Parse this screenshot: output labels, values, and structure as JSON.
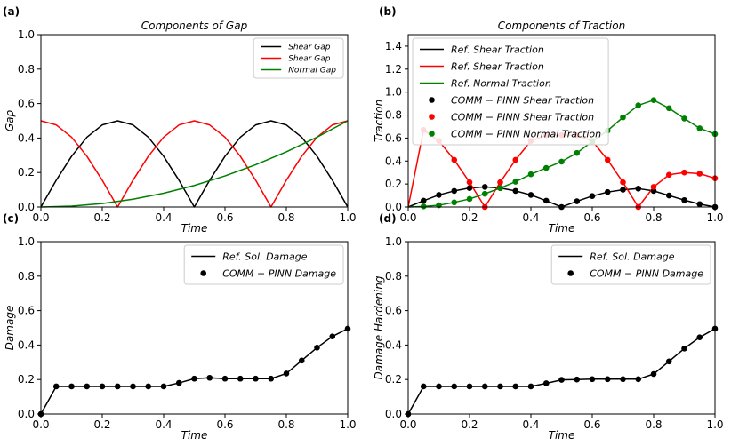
{
  "chart_data": [
    {
      "panel": "(a)",
      "type": "line",
      "title": "Components of Gap",
      "xlabel": "Time",
      "ylabel": "Gap",
      "xlim": [
        0,
        1
      ],
      "ylim": [
        0,
        1
      ],
      "xticks": [
        "0.0",
        "0.2",
        "0.4",
        "0.6",
        "0.8",
        "1.0"
      ],
      "yticks": [
        "0.0",
        "0.2",
        "0.4",
        "0.6",
        "0.8",
        "1.0"
      ],
      "legend_position": "top-right",
      "legend_font": 9,
      "series": [
        {
          "name": "Shear Gap",
          "color": "#000000",
          "style": "line",
          "x": [
            0,
            0.05,
            0.1,
            0.15,
            0.2,
            0.25,
            0.3,
            0.35,
            0.4,
            0.45,
            0.5,
            0.55,
            0.6,
            0.65,
            0.7,
            0.75,
            0.8,
            0.85,
            0.9,
            0.95,
            1.0
          ],
          "y": [
            0,
            0.155,
            0.294,
            0.405,
            0.476,
            0.5,
            0.476,
            0.405,
            0.294,
            0.155,
            0,
            0.155,
            0.294,
            0.405,
            0.476,
            0.5,
            0.476,
            0.405,
            0.294,
            0.155,
            0
          ]
        },
        {
          "name": "Shear Gap",
          "color": "#ff0000",
          "style": "line",
          "x": [
            0,
            0.05,
            0.1,
            0.15,
            0.2,
            0.25,
            0.3,
            0.35,
            0.4,
            0.45,
            0.5,
            0.55,
            0.6,
            0.65,
            0.7,
            0.75,
            0.8,
            0.85,
            0.9,
            0.95,
            1.0
          ],
          "y": [
            0.5,
            0.476,
            0.405,
            0.294,
            0.155,
            0,
            0.155,
            0.294,
            0.405,
            0.476,
            0.5,
            0.476,
            0.405,
            0.294,
            0.155,
            0,
            0.155,
            0.294,
            0.405,
            0.476,
            0.5
          ]
        },
        {
          "name": "Normal Gap",
          "color": "#008000",
          "style": "line",
          "x": [
            0,
            0.1,
            0.2,
            0.3,
            0.4,
            0.5,
            0.6,
            0.7,
            0.8,
            0.9,
            1.0
          ],
          "y": [
            0,
            0.005,
            0.02,
            0.045,
            0.08,
            0.125,
            0.18,
            0.245,
            0.32,
            0.405,
            0.5
          ]
        }
      ]
    },
    {
      "panel": "(b)",
      "type": "line",
      "title": "Components of Traction",
      "xlabel": "Time",
      "ylabel": "Traction",
      "xlim": [
        0,
        1
      ],
      "ylim": [
        0,
        1.5
      ],
      "xticks": [
        "0.0",
        "0.2",
        "0.4",
        "0.6",
        "0.8",
        "1.0"
      ],
      "yticks": [
        "0.0",
        "0.2",
        "0.4",
        "0.6",
        "0.8",
        "1.0",
        "1.2",
        "1.4"
      ],
      "legend_position": "top-left",
      "legend_font": 11,
      "series": [
        {
          "name": "Ref.  Shear Traction",
          "color": "#000000",
          "style": "line",
          "x": [
            0,
            0.05,
            0.1,
            0.15,
            0.2,
            0.25,
            0.3,
            0.35,
            0.4,
            0.45,
            0.5,
            0.55,
            0.6,
            0.65,
            0.7,
            0.75,
            0.8,
            0.85,
            0.9,
            0.95,
            1.0
          ],
          "y": [
            0,
            0.055,
            0.105,
            0.14,
            0.165,
            0.175,
            0.165,
            0.14,
            0.105,
            0.055,
            0,
            0.05,
            0.095,
            0.13,
            0.15,
            0.16,
            0.14,
            0.1,
            0.06,
            0.025,
            0
          ]
        },
        {
          "name": "Ref.  Shear Traction",
          "color": "#ff0000",
          "style": "line",
          "x": [
            0,
            0.05,
            0.1,
            0.15,
            0.2,
            0.25,
            0.3,
            0.35,
            0.4,
            0.45,
            0.5,
            0.55,
            0.6,
            0.65,
            0.7,
            0.75,
            0.8,
            0.85,
            0.9,
            0.95,
            1.0
          ],
          "y": [
            0,
            0.67,
            0.575,
            0.41,
            0.215,
            0,
            0.215,
            0.41,
            0.575,
            0.625,
            0.625,
            0.625,
            0.575,
            0.41,
            0.215,
            0,
            0.175,
            0.28,
            0.3,
            0.29,
            0.25
          ]
        },
        {
          "name": "Ref.  Normal Traction",
          "color": "#008000",
          "style": "line",
          "x": [
            0,
            0.05,
            0.1,
            0.15,
            0.2,
            0.25,
            0.3,
            0.35,
            0.4,
            0.45,
            0.5,
            0.55,
            0.6,
            0.65,
            0.7,
            0.75,
            0.8,
            0.85,
            0.9,
            0.95,
            1.0
          ],
          "y": [
            0,
            0.005,
            0.015,
            0.04,
            0.07,
            0.115,
            0.165,
            0.22,
            0.285,
            0.34,
            0.395,
            0.47,
            0.57,
            0.665,
            0.78,
            0.885,
            0.93,
            0.86,
            0.77,
            0.685,
            0.635
          ]
        },
        {
          "name": "COMM − PINN Shear Traction",
          "color": "#000000",
          "style": "marker",
          "x": [
            0.05,
            0.1,
            0.15,
            0.2,
            0.25,
            0.3,
            0.35,
            0.4,
            0.45,
            0.5,
            0.55,
            0.6,
            0.65,
            0.7,
            0.75,
            0.8,
            0.85,
            0.9,
            0.95,
            1.0
          ],
          "y": [
            0.055,
            0.105,
            0.14,
            0.165,
            0.175,
            0.165,
            0.14,
            0.105,
            0.055,
            0,
            0.05,
            0.095,
            0.13,
            0.15,
            0.16,
            0.14,
            0.1,
            0.06,
            0.025,
            0
          ]
        },
        {
          "name": "COMM − PINN Shear Traction",
          "color": "#ff0000",
          "style": "marker",
          "x": [
            0.05,
            0.1,
            0.15,
            0.2,
            0.25,
            0.3,
            0.35,
            0.4,
            0.45,
            0.5,
            0.55,
            0.6,
            0.65,
            0.7,
            0.75,
            0.8,
            0.85,
            0.9,
            0.95,
            1.0
          ],
          "y": [
            0.67,
            0.575,
            0.41,
            0.215,
            0,
            0.215,
            0.41,
            0.575,
            0.625,
            0.625,
            0.625,
            0.575,
            0.41,
            0.215,
            0,
            0.175,
            0.28,
            0.3,
            0.29,
            0.25
          ]
        },
        {
          "name": "COMM − PINN Normal Traction",
          "color": "#008000",
          "style": "marker",
          "x": [
            0.05,
            0.1,
            0.15,
            0.2,
            0.25,
            0.3,
            0.35,
            0.4,
            0.45,
            0.5,
            0.55,
            0.6,
            0.65,
            0.7,
            0.75,
            0.8,
            0.85,
            0.9,
            0.95,
            1.0
          ],
          "y": [
            0.005,
            0.015,
            0.04,
            0.07,
            0.115,
            0.165,
            0.22,
            0.285,
            0.34,
            0.395,
            0.47,
            0.57,
            0.665,
            0.78,
            0.885,
            0.93,
            0.86,
            0.77,
            0.685,
            0.635
          ]
        }
      ]
    },
    {
      "panel": "(c)",
      "type": "line",
      "title": "",
      "xlabel": "Time",
      "ylabel": "Damage",
      "xlim": [
        0,
        1
      ],
      "ylim": [
        0,
        1
      ],
      "xticks": [
        "0.0",
        "0.2",
        "0.4",
        "0.6",
        "0.8",
        "1.0"
      ],
      "yticks": [
        "0.0",
        "0.2",
        "0.4",
        "0.6",
        "0.8",
        "1.0"
      ],
      "legend_position": "top-right",
      "legend_font": 11,
      "series": [
        {
          "name": "Ref.  Sol.  Damage",
          "color": "#000000",
          "style": "line",
          "x": [
            0,
            0.05,
            0.1,
            0.15,
            0.2,
            0.25,
            0.3,
            0.35,
            0.4,
            0.45,
            0.5,
            0.55,
            0.6,
            0.65,
            0.7,
            0.75,
            0.8,
            0.85,
            0.9,
            0.95,
            1.0
          ],
          "y": [
            0,
            0.16,
            0.16,
            0.16,
            0.16,
            0.16,
            0.16,
            0.16,
            0.16,
            0.18,
            0.205,
            0.21,
            0.205,
            0.205,
            0.205,
            0.205,
            0.235,
            0.31,
            0.385,
            0.45,
            0.495
          ]
        },
        {
          "name": "COMM − PINN Damage",
          "color": "#000000",
          "style": "marker",
          "x": [
            0,
            0.05,
            0.1,
            0.15,
            0.2,
            0.25,
            0.3,
            0.35,
            0.4,
            0.45,
            0.5,
            0.55,
            0.6,
            0.65,
            0.7,
            0.75,
            0.8,
            0.85,
            0.9,
            0.95,
            1.0
          ],
          "y": [
            0,
            0.16,
            0.16,
            0.16,
            0.16,
            0.16,
            0.16,
            0.16,
            0.16,
            0.18,
            0.205,
            0.21,
            0.205,
            0.205,
            0.205,
            0.205,
            0.235,
            0.31,
            0.385,
            0.45,
            0.495
          ]
        }
      ]
    },
    {
      "panel": "(d)",
      "type": "line",
      "title": "",
      "xlabel": "Time",
      "ylabel": "Damage Hardening",
      "xlim": [
        0,
        1
      ],
      "ylim": [
        0,
        1
      ],
      "xticks": [
        "0.0",
        "0.2",
        "0.4",
        "0.6",
        "0.8",
        "1.0"
      ],
      "yticks": [
        "0.0",
        "0.2",
        "0.4",
        "0.6",
        "0.8",
        "1.0"
      ],
      "legend_position": "top-right",
      "legend_font": 11,
      "series": [
        {
          "name": "Ref.  Sol.  Damage",
          "color": "#000000",
          "style": "line",
          "x": [
            0,
            0.05,
            0.1,
            0.15,
            0.2,
            0.25,
            0.3,
            0.35,
            0.4,
            0.45,
            0.5,
            0.55,
            0.6,
            0.65,
            0.7,
            0.75,
            0.8,
            0.85,
            0.9,
            0.95,
            1.0
          ],
          "y": [
            0,
            0.16,
            0.16,
            0.16,
            0.16,
            0.16,
            0.16,
            0.16,
            0.16,
            0.178,
            0.198,
            0.2,
            0.202,
            0.202,
            0.202,
            0.202,
            0.232,
            0.305,
            0.38,
            0.445,
            0.495
          ]
        },
        {
          "name": "COMM − PINN Damage",
          "color": "#000000",
          "style": "marker",
          "x": [
            0,
            0.05,
            0.1,
            0.15,
            0.2,
            0.25,
            0.3,
            0.35,
            0.4,
            0.45,
            0.5,
            0.55,
            0.6,
            0.65,
            0.7,
            0.75,
            0.8,
            0.85,
            0.9,
            0.95,
            1.0
          ],
          "y": [
            0,
            0.16,
            0.16,
            0.16,
            0.16,
            0.16,
            0.16,
            0.16,
            0.16,
            0.178,
            0.198,
            0.2,
            0.202,
            0.202,
            0.202,
            0.202,
            0.232,
            0.305,
            0.38,
            0.445,
            0.495
          ]
        }
      ]
    }
  ]
}
